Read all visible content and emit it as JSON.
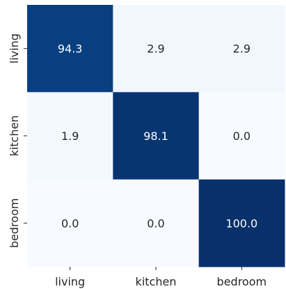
{
  "chart_data": {
    "type": "heatmap",
    "title": "",
    "xlabel": "",
    "ylabel": "",
    "x_categories": [
      "living",
      "kitchen",
      "bedroom"
    ],
    "y_categories": [
      "living",
      "kitchen",
      "bedroom"
    ],
    "values": [
      [
        94.3,
        2.9,
        2.9
      ],
      [
        1.9,
        98.1,
        0.0
      ],
      [
        0.0,
        0.0,
        100.0
      ]
    ],
    "value_range": [
      0,
      100
    ],
    "colormap": "Blues",
    "low_color": "#f7fbff",
    "high_color": "#08306b",
    "light_text_color": "#ffffff",
    "dark_text_color": "#262626",
    "grid": false,
    "colorbar": false
  }
}
